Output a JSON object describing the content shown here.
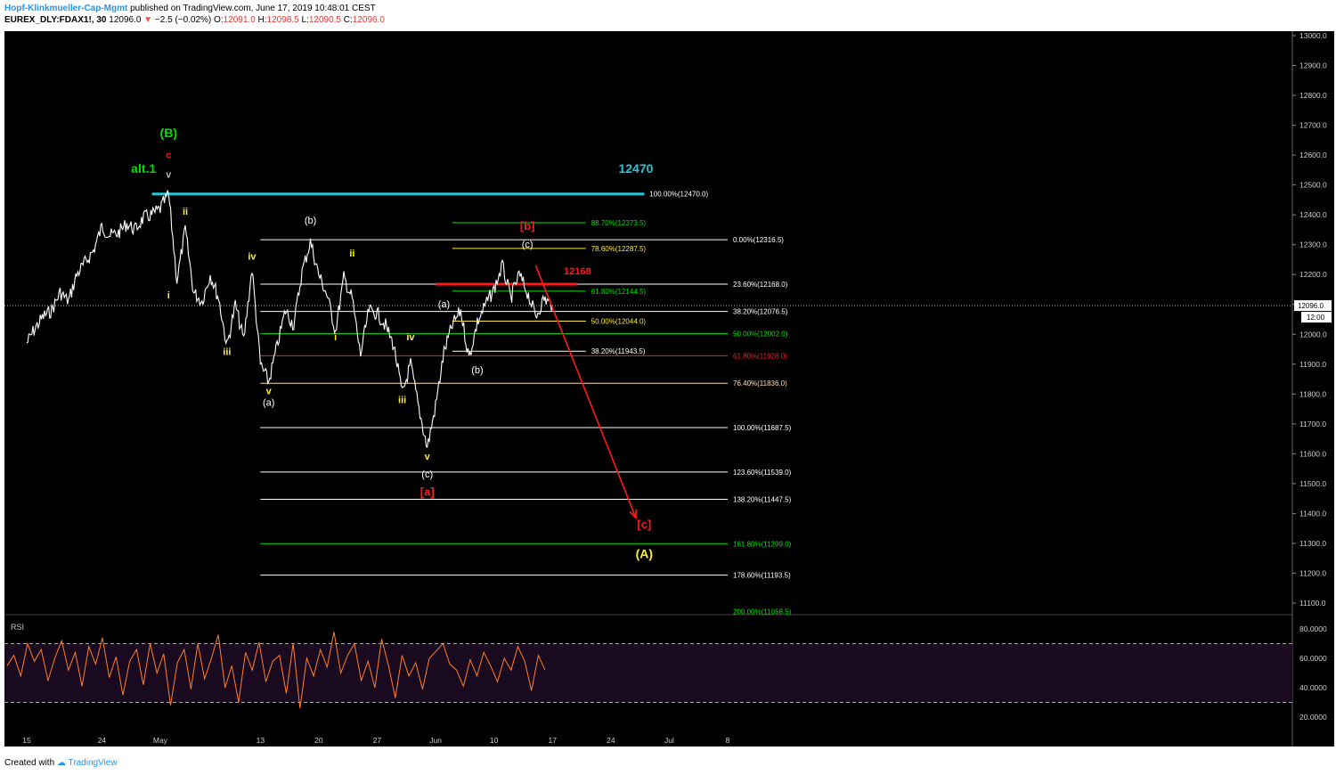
{
  "header": {
    "author": "Hopf-Klinkmueller-Cap-Mgmt",
    "published": "published on TradingView.com, June 17, 2019 10:48:01 CEST",
    "symbol": "EUREX_DLY:FDAX1!, 30",
    "last": "12096.0",
    "change": "−2.5 (−0.02%)",
    "open_label": "O:",
    "open": "12091.0",
    "high_label": "H:",
    "high": "12098.5",
    "low_label": "L:",
    "low": "12090.5",
    "close_label": "C:",
    "close": "12096.0"
  },
  "footer": {
    "created_with": "Created with",
    "brand": "TradingView"
  },
  "colors": {
    "bg": "#000000",
    "white": "#ffffff",
    "yellow": "#ffeb3b",
    "green": "#00e000",
    "red": "#ff1a1a",
    "cyan": "#26c6da",
    "rsi": "#ff7f27",
    "rsi_band": "#1a0a1f"
  },
  "chart_data": {
    "type": "line",
    "title": "",
    "y_axis": {
      "min": 11100,
      "max": 13000,
      "ticks": [
        "13000.0",
        "12900.0",
        "12800.0",
        "12700.0",
        "12600.0",
        "12500.0",
        "12400.0",
        "12300.0",
        "12200.0",
        "12100.0",
        "12000.0",
        "11900.0",
        "11800.0",
        "11700.0",
        "11600.0",
        "11500.0",
        "11400.0",
        "11300.0",
        "11200.0",
        "11100.0"
      ]
    },
    "x_axis": {
      "ticks": [
        "15",
        "24",
        "May",
        "13",
        "20",
        "27",
        "Jun",
        "10",
        "17",
        "24",
        "Jul",
        "8"
      ]
    },
    "last_price": {
      "value": 12096.0,
      "label": "12096.0",
      "time": "12:00"
    },
    "series": [
      {
        "values": [
          [
            "2019-04-15",
            11970
          ],
          [
            "2019-04-16",
            12020
          ],
          [
            "2019-04-17",
            12060
          ],
          [
            "2019-04-18",
            12080
          ],
          [
            "2019-04-19",
            12140
          ],
          [
            "2019-04-20",
            12110
          ],
          [
            "2019-04-21",
            12200
          ],
          [
            "2019-04-22",
            12240
          ],
          [
            "2019-04-23",
            12280
          ],
          [
            "2019-04-24",
            12360
          ],
          [
            "2019-04-25",
            12330
          ],
          [
            "2019-04-26",
            12340
          ],
          [
            "2019-04-27",
            12370
          ],
          [
            "2019-04-28",
            12350
          ],
          [
            "2019-04-29",
            12390
          ],
          [
            "2019-04-30",
            12400
          ],
          [
            "2019-05-01",
            12420
          ],
          [
            "2019-05-02",
            12470
          ],
          [
            "2019-05-03",
            12180
          ],
          [
            "2019-05-04",
            12350
          ],
          [
            "2019-05-05",
            12140
          ],
          [
            "2019-05-06",
            12110
          ],
          [
            "2019-05-07",
            12200
          ],
          [
            "2019-05-08",
            12120
          ],
          [
            "2019-05-09",
            11960
          ],
          [
            "2019-05-10",
            12100
          ],
          [
            "2019-05-11",
            11980
          ],
          [
            "2019-05-12",
            12220
          ],
          [
            "2019-05-13",
            11900
          ],
          [
            "2019-05-14",
            11840
          ],
          [
            "2019-05-15",
            11960
          ],
          [
            "2019-05-16",
            12080
          ],
          [
            "2019-05-17",
            12030
          ],
          [
            "2019-05-18",
            12210
          ],
          [
            "2019-05-19",
            12310
          ],
          [
            "2019-05-20",
            12200
          ],
          [
            "2019-05-21",
            12130
          ],
          [
            "2019-05-22",
            12010
          ],
          [
            "2019-05-23",
            12190
          ],
          [
            "2019-05-24",
            12120
          ],
          [
            "2019-05-25",
            11930
          ],
          [
            "2019-05-26",
            12080
          ],
          [
            "2019-05-27",
            12070
          ],
          [
            "2019-05-28",
            12030
          ],
          [
            "2019-05-29",
            11960
          ],
          [
            "2019-05-30",
            11800
          ],
          [
            "2019-05-31",
            11900
          ],
          [
            "2019-06-01",
            11750
          ],
          [
            "2019-06-02",
            11620
          ],
          [
            "2019-06-03",
            11760
          ],
          [
            "2019-06-04",
            11940
          ],
          [
            "2019-06-05",
            12030
          ],
          [
            "2019-06-06",
            12080
          ],
          [
            "2019-06-07",
            11920
          ],
          [
            "2019-06-08",
            12040
          ],
          [
            "2019-06-09",
            12100
          ],
          [
            "2019-06-10",
            12150
          ],
          [
            "2019-06-11",
            12230
          ],
          [
            "2019-06-12",
            12120
          ],
          [
            "2019-06-13",
            12200
          ],
          [
            "2019-06-14",
            12140
          ],
          [
            "2019-06-15",
            12060
          ],
          [
            "2019-06-16",
            12120
          ],
          [
            "2019-06-17",
            12096
          ]
        ]
      }
    ],
    "fib_levels": [
      {
        "label": "100.00%(12470.0)",
        "value": 12470.0,
        "color": "white",
        "start": "2019-05-02",
        "end": "2019-06-28"
      },
      {
        "label": "88.70%(12373.5)",
        "value": 12373.5,
        "color": "green",
        "start": "2019-06-05",
        "end": "2019-06-21"
      },
      {
        "label": "78.60%(12287.5)",
        "value": 12287.5,
        "color": "yellow",
        "start": "2019-06-05",
        "end": "2019-06-21"
      },
      {
        "label": "61.80%(12144.5)",
        "value": 12144.5,
        "color": "green",
        "start": "2019-06-05",
        "end": "2019-06-21"
      },
      {
        "label": "50.00%(12044.0)",
        "value": 12044.0,
        "color": "yellow",
        "start": "2019-06-05",
        "end": "2019-06-21"
      },
      {
        "label": "38.20%(11943.5)",
        "value": 11943.5,
        "color": "white",
        "start": "2019-06-05",
        "end": "2019-06-21"
      },
      {
        "label": "0.00%(12316.5)",
        "value": 12316.5,
        "color": "white",
        "start": "2019-05-13",
        "end": "2019-07-08"
      },
      {
        "label": "23.60%(12168.0)",
        "value": 12168.0,
        "color": "white",
        "start": "2019-05-13",
        "end": "2019-07-08"
      },
      {
        "label": "38.20%(12076.5)",
        "value": 12076.5,
        "color": "white",
        "start": "2019-05-13",
        "end": "2019-07-08"
      },
      {
        "label": "50.00%(12002.0)",
        "value": 12002.0,
        "color": "green",
        "start": "2019-05-13",
        "end": "2019-07-08"
      },
      {
        "label": "61.80%(11928.0)",
        "value": 11928.0,
        "color": "red",
        "start": "2019-05-13",
        "end": "2019-07-08"
      },
      {
        "label": "76.40%(11836.0)",
        "value": 11836.0,
        "color": "tan",
        "start": "2019-05-13",
        "end": "2019-07-08"
      },
      {
        "label": "100.00%(11687.5)",
        "value": 11687.5,
        "color": "white",
        "start": "2019-05-13",
        "end": "2019-07-08"
      },
      {
        "label": "123.60%(11539.0)",
        "value": 11539.0,
        "color": "white",
        "start": "2019-05-13",
        "end": "2019-07-08"
      },
      {
        "label": "138.20%(11447.5)",
        "value": 11447.5,
        "color": "white",
        "start": "2019-05-13",
        "end": "2019-07-08"
      },
      {
        "label": "161.80%(11299.0)",
        "value": 11299.0,
        "color": "green",
        "start": "2019-05-13",
        "end": "2019-07-08"
      },
      {
        "label": "178.60%(11193.5)",
        "value": 11193.5,
        "color": "white",
        "start": "2019-05-13",
        "end": "2019-07-08"
      },
      {
        "label": "200.00%(11058.5)",
        "value": 11058.5,
        "color": "green",
        "start": "2019-05-13",
        "end": "2019-07-08"
      }
    ],
    "horizontal_lines": [
      {
        "label": "12470",
        "value": 12470,
        "color": "cyan",
        "start": "2019-04-30",
        "end": "2019-06-28"
      },
      {
        "label": "12168",
        "value": 12168,
        "color": "red",
        "start": "2019-06-03",
        "end": "2019-06-20"
      }
    ],
    "arrow": {
      "from": [
        "2019-06-15",
        12230
      ],
      "to": [
        "2019-06-27",
        11385
      ],
      "color": "red"
    },
    "annotations": [
      {
        "text": "(B)",
        "x": "2019-05-02",
        "y": 12660,
        "color": "green"
      },
      {
        "text": "c",
        "x": "2019-05-02",
        "y": 12590,
        "color": "red"
      },
      {
        "text": "alt.1",
        "x": "2019-04-29",
        "y": 12540,
        "color": "green"
      },
      {
        "text": "v",
        "x": "2019-05-02",
        "y": 12525,
        "color": "white"
      },
      {
        "text": "12470",
        "x": "2019-06-27",
        "y": 12540,
        "color": "cyan"
      },
      {
        "text": "ii",
        "x": "2019-05-04",
        "y": 12400,
        "color": "yellow"
      },
      {
        "text": "i",
        "x": "2019-05-02",
        "y": 12120,
        "color": "yellow"
      },
      {
        "text": "iii",
        "x": "2019-05-09",
        "y": 11930,
        "color": "yellow"
      },
      {
        "text": "iv",
        "x": "2019-05-12",
        "y": 12250,
        "color": "yellow"
      },
      {
        "text": "v",
        "x": "2019-05-14",
        "y": 11800,
        "color": "yellow"
      },
      {
        "text": "(a)",
        "x": "2019-05-14",
        "y": 11760,
        "color": "white"
      },
      {
        "text": "(b)",
        "x": "2019-05-19",
        "y": 12370,
        "color": "white"
      },
      {
        "text": "ii",
        "x": "2019-05-24",
        "y": 12260,
        "color": "yellow"
      },
      {
        "text": "i",
        "x": "2019-05-22",
        "y": 11980,
        "color": "yellow"
      },
      {
        "text": "iv",
        "x": "2019-05-31",
        "y": 11980,
        "color": "yellow"
      },
      {
        "text": "iii",
        "x": "2019-05-30",
        "y": 11770,
        "color": "yellow"
      },
      {
        "text": "v",
        "x": "2019-06-02",
        "y": 11580,
        "color": "yellow"
      },
      {
        "text": "(c)",
        "x": "2019-06-02",
        "y": 11520,
        "color": "white"
      },
      {
        "text": "[a]",
        "x": "2019-06-02",
        "y": 11460,
        "color": "red"
      },
      {
        "text": "(a)",
        "x": "2019-06-04",
        "y": 12090,
        "color": "white"
      },
      {
        "text": "(b)",
        "x": "2019-06-08",
        "y": 11870,
        "color": "white"
      },
      {
        "text": "[b]",
        "x": "2019-06-14",
        "y": 12350,
        "color": "red"
      },
      {
        "text": "(c)",
        "x": "2019-06-14",
        "y": 12290,
        "color": "white"
      },
      {
        "text": "12168",
        "x": "2019-06-20",
        "y": 12200,
        "color": "red"
      },
      {
        "text": "[c]",
        "x": "2019-06-28",
        "y": 11350,
        "color": "red"
      },
      {
        "text": "(A)",
        "x": "2019-06-28",
        "y": 11250,
        "color": "yellow"
      }
    ],
    "rsi": {
      "title": "RSI",
      "ticks": [
        "80.0000",
        "60.0000",
        "40.0000",
        "20.0000"
      ],
      "upper_band": 70,
      "lower_band": 30,
      "values": [
        55,
        62,
        48,
        70,
        58,
        66,
        45,
        60,
        72,
        52,
        64,
        41,
        68,
        56,
        74,
        47,
        61,
        35,
        58,
        66,
        42,
        70,
        50,
        63,
        28,
        57,
        66,
        39,
        70,
        46,
        60,
        76,
        40,
        55,
        30,
        64,
        52,
        71,
        44,
        58,
        62,
        36,
        70,
        26,
        60,
        48,
        66,
        54,
        78,
        50,
        62,
        70,
        45,
        58,
        40,
        73,
        55,
        33,
        62,
        48,
        57,
        39,
        60,
        65,
        70,
        56,
        52,
        41,
        59,
        48,
        64,
        55,
        44,
        60,
        52,
        68,
        58,
        38,
        62,
        52
      ]
    }
  }
}
